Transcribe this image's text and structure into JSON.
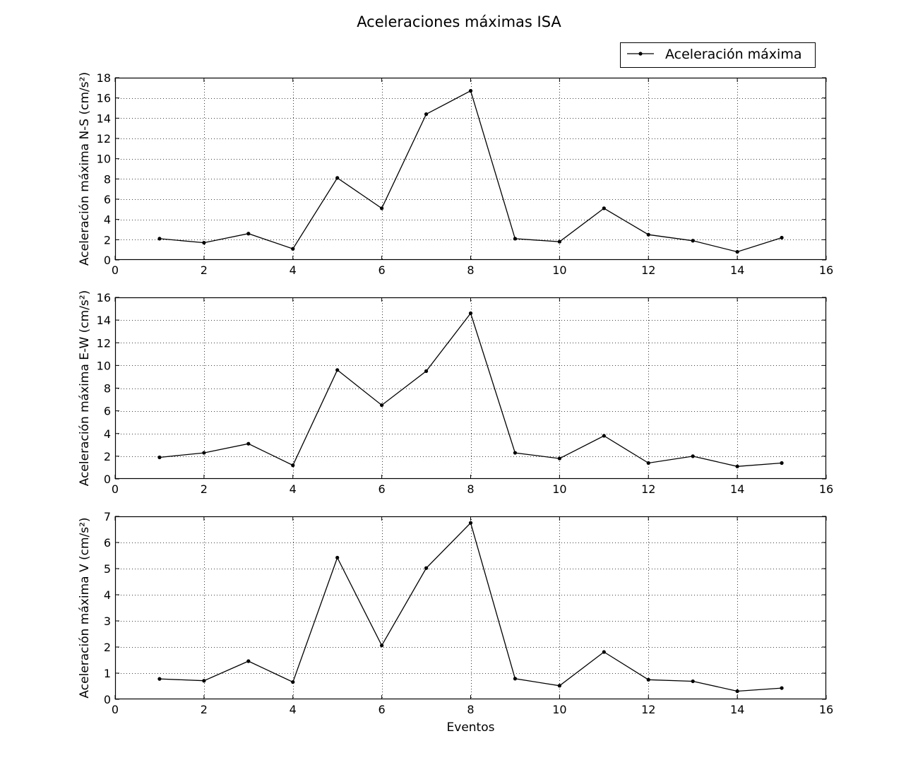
{
  "figure_title": "Aceleraciones máximas ISA",
  "xlabel": "Eventos",
  "legend": {
    "label": "Aceleración máxima",
    "placement": "top-right"
  },
  "colors": {
    "series": "#000000",
    "grid": "#000000",
    "background": "#ffffff"
  },
  "chart_data": [
    {
      "type": "line",
      "ylabel": "Aceleración máxima N-S (cm/s²)",
      "xlim": [
        0,
        16
      ],
      "ylim": [
        0,
        18
      ],
      "xticks": [
        0,
        2,
        4,
        6,
        8,
        10,
        12,
        14,
        16
      ],
      "yticks": [
        0,
        2,
        4,
        6,
        8,
        10,
        12,
        14,
        16,
        18
      ],
      "grid": true,
      "series": [
        {
          "name": "Aceleración máxima",
          "x": [
            1,
            2,
            3,
            4,
            5,
            6,
            7,
            8,
            9,
            10,
            11,
            12,
            13,
            14,
            15
          ],
          "y": [
            2.1,
            1.7,
            2.6,
            1.1,
            8.1,
            5.1,
            14.4,
            16.7,
            2.1,
            1.8,
            5.1,
            2.5,
            1.9,
            0.8,
            2.2
          ]
        }
      ]
    },
    {
      "type": "line",
      "ylabel": "Aceleración máxima E-W (cm/s²)",
      "xlim": [
        0,
        16
      ],
      "ylim": [
        0,
        16
      ],
      "xticks": [
        0,
        2,
        4,
        6,
        8,
        10,
        12,
        14,
        16
      ],
      "yticks": [
        0,
        2,
        4,
        6,
        8,
        10,
        12,
        14,
        16
      ],
      "grid": true,
      "series": [
        {
          "name": "Aceleración máxima",
          "x": [
            1,
            2,
            3,
            4,
            5,
            6,
            7,
            8,
            9,
            10,
            11,
            12,
            13,
            14,
            15
          ],
          "y": [
            1.9,
            2.3,
            3.1,
            1.2,
            9.6,
            6.5,
            9.5,
            14.6,
            2.3,
            1.8,
            3.8,
            1.4,
            2.0,
            1.1,
            1.4
          ]
        }
      ]
    },
    {
      "type": "line",
      "ylabel": "Aceleración máxima V (cm/s²)",
      "xlabel": "Eventos",
      "xlim": [
        0,
        16
      ],
      "ylim": [
        0,
        7
      ],
      "xticks": [
        0,
        2,
        4,
        6,
        8,
        10,
        12,
        14,
        16
      ],
      "yticks": [
        0,
        1,
        2,
        3,
        4,
        5,
        6,
        7
      ],
      "grid": true,
      "series": [
        {
          "name": "Aceleración máxima",
          "x": [
            1,
            2,
            3,
            4,
            5,
            6,
            7,
            8,
            9,
            10,
            11,
            12,
            13,
            14,
            15
          ],
          "y": [
            0.78,
            0.71,
            1.46,
            0.66,
            5.42,
            2.06,
            5.02,
            6.75,
            0.79,
            0.52,
            1.81,
            0.75,
            0.69,
            0.31,
            0.43
          ]
        }
      ]
    }
  ]
}
